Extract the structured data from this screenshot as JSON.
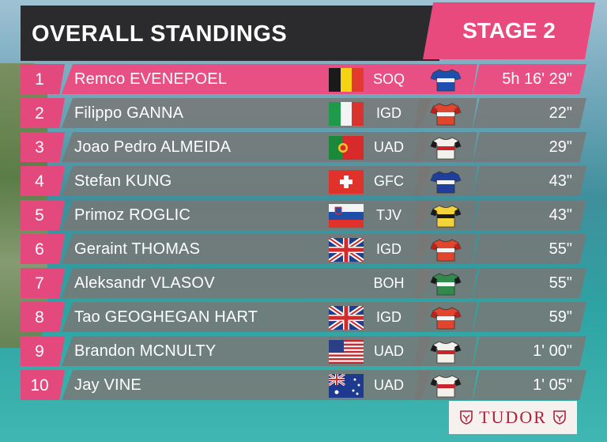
{
  "header": {
    "title": "OVERALL STANDINGS",
    "stage": "STAGE 2"
  },
  "colors": {
    "accent": "#e84f82",
    "panel": "#2b2a2c",
    "row": "#787876"
  },
  "standings": [
    {
      "pos": "1",
      "name": "Remco EVENEPOEL",
      "flag": "belgium-flag",
      "team": "SOQ",
      "jersey": "jersey-soq-icon",
      "time": "5h 16' 29\""
    },
    {
      "pos": "2",
      "name": "Filippo GANNA",
      "flag": "italy-flag",
      "team": "IGD",
      "jersey": "jersey-igd-icon",
      "time": "22\""
    },
    {
      "pos": "3",
      "name": "Joao Pedro ALMEIDA",
      "flag": "portugal-flag",
      "team": "UAD",
      "jersey": "jersey-uad-icon",
      "time": "29\""
    },
    {
      "pos": "4",
      "name": "Stefan KUNG",
      "flag": "switzerland-flag",
      "team": "GFC",
      "jersey": "jersey-gfc-icon",
      "time": "43\""
    },
    {
      "pos": "5",
      "name": "Primoz ROGLIC",
      "flag": "slovenia-flag",
      "team": "TJV",
      "jersey": "jersey-tjv-icon",
      "time": "43\""
    },
    {
      "pos": "6",
      "name": "Geraint THOMAS",
      "flag": "uk-flag",
      "team": "IGD",
      "jersey": "jersey-igd-icon",
      "time": "55\""
    },
    {
      "pos": "7",
      "name": "Aleksandr VLASOV",
      "flag": "",
      "team": "BOH",
      "jersey": "jersey-boh-icon",
      "time": "55\""
    },
    {
      "pos": "8",
      "name": "Tao GEOGHEGAN HART",
      "flag": "uk-flag",
      "team": "IGD",
      "jersey": "jersey-igd-icon",
      "time": "59\""
    },
    {
      "pos": "9",
      "name": "Brandon MCNULTY",
      "flag": "usa-flag",
      "team": "UAD",
      "jersey": "jersey-uad-icon",
      "time": "1' 00\""
    },
    {
      "pos": "10",
      "name": "Jay VINE",
      "flag": "australia-flag",
      "team": "UAD",
      "jersey": "jersey-uad-icon",
      "time": "1' 05\""
    }
  ],
  "sponsor": {
    "name": "TUDOR",
    "logo_icon": "tudor-shield-icon"
  }
}
